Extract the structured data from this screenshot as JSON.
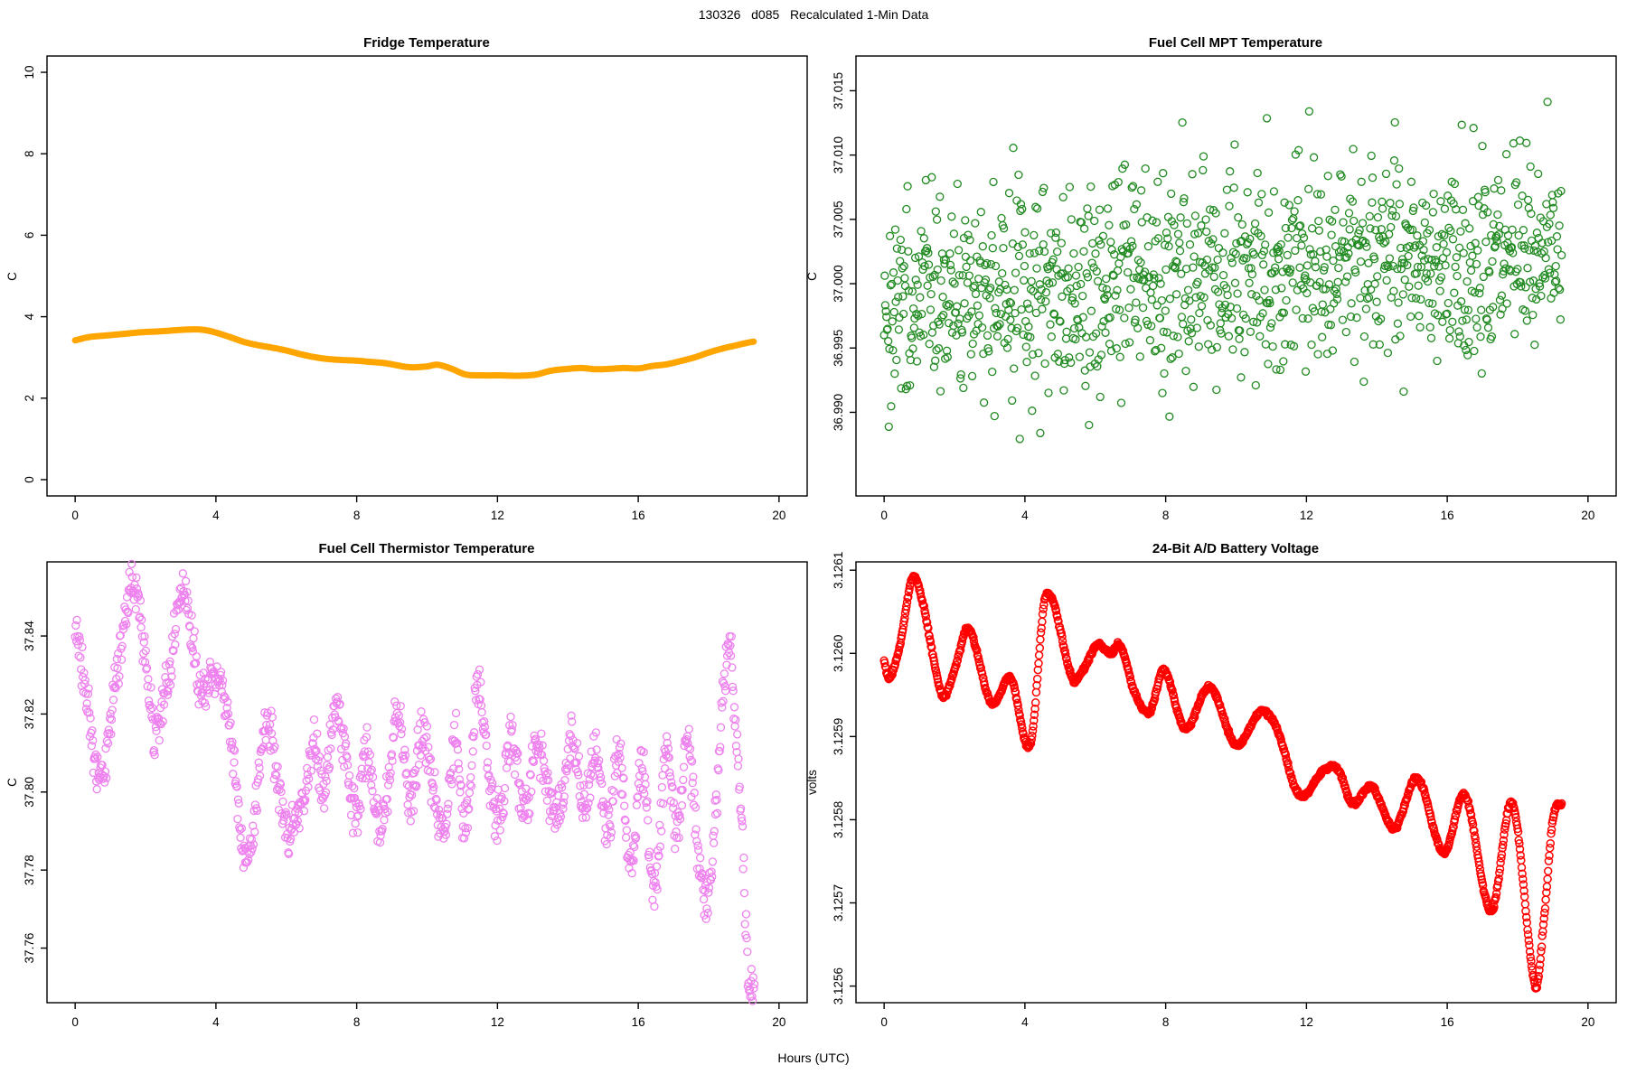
{
  "main_title": "130326   d085   Recalculated 1-Min Data",
  "x_axis": {
    "label": "Hours (UTC)",
    "lim": [
      -0.8,
      20.8
    ],
    "ticks": [
      0,
      4,
      8,
      12,
      16,
      20
    ],
    "tick_labels": [
      "0",
      "4",
      "8",
      "12",
      "16",
      "20"
    ]
  },
  "chart_data": [
    {
      "type": "line",
      "title": "Fridge Temperature",
      "ylabel": "C",
      "color": "#FFA500",
      "line_width": 7,
      "ylim": [
        -0.4,
        10.4
      ],
      "yticks": [
        0,
        2,
        4,
        6,
        8,
        10
      ],
      "ytick_labels": [
        "0",
        "2",
        "4",
        "6",
        "8",
        "10"
      ],
      "x_range_hours": [
        0,
        19.3
      ],
      "line_points": [
        [
          0,
          3.42
        ],
        [
          0.4,
          3.5
        ],
        [
          0.9,
          3.54
        ],
        [
          1.4,
          3.58
        ],
        [
          1.9,
          3.62
        ],
        [
          2.4,
          3.64
        ],
        [
          2.9,
          3.67
        ],
        [
          3.4,
          3.69
        ],
        [
          3.7,
          3.67
        ],
        [
          4.0,
          3.61
        ],
        [
          4.4,
          3.5
        ],
        [
          4.8,
          3.38
        ],
        [
          5.2,
          3.3
        ],
        [
          5.6,
          3.24
        ],
        [
          6.0,
          3.17
        ],
        [
          6.5,
          3.06
        ],
        [
          7.0,
          2.98
        ],
        [
          7.5,
          2.94
        ],
        [
          8.0,
          2.92
        ],
        [
          8.4,
          2.89
        ],
        [
          8.8,
          2.86
        ],
        [
          9.5,
          2.76
        ],
        [
          10.0,
          2.78
        ],
        [
          10.3,
          2.82
        ],
        [
          10.7,
          2.72
        ],
        [
          11.1,
          2.58
        ],
        [
          11.6,
          2.56
        ],
        [
          12.1,
          2.56
        ],
        [
          12.6,
          2.55
        ],
        [
          13.1,
          2.58
        ],
        [
          13.5,
          2.67
        ],
        [
          14.0,
          2.72
        ],
        [
          14.4,
          2.74
        ],
        [
          14.8,
          2.71
        ],
        [
          15.2,
          2.72
        ],
        [
          15.6,
          2.74
        ],
        [
          16.0,
          2.73
        ],
        [
          16.4,
          2.79
        ],
        [
          16.8,
          2.83
        ],
        [
          17.2,
          2.91
        ],
        [
          17.6,
          3.0
        ],
        [
          18.0,
          3.12
        ],
        [
          18.4,
          3.22
        ],
        [
          18.8,
          3.3
        ],
        [
          19.1,
          3.36
        ],
        [
          19.3,
          3.39
        ]
      ]
    },
    {
      "type": "scatter",
      "title": "Fuel Cell MPT Temperature",
      "ylabel": "C",
      "color": "#228B22",
      "marker": {
        "shape": "open-circle",
        "radius": 4,
        "stroke_width": 1.3
      },
      "ylim": [
        36.9835,
        37.0177
      ],
      "yticks": [
        36.99,
        36.995,
        37.0,
        37.005,
        37.01,
        37.015
      ],
      "ytick_labels": [
        "36.990",
        "36.995",
        "37.000",
        "37.005",
        "37.010",
        "37.015"
      ],
      "generator": {
        "kind": "gauss_trend",
        "n": 1155,
        "x_max": 19.25,
        "seed": 1303266,
        "mean_start": 36.9985,
        "mean_slope": 0.00024,
        "sd": 0.004,
        "clip_z": 3.0
      }
    },
    {
      "type": "scatter",
      "title": "Fuel Cell Thermistor Temperature",
      "ylabel": "C",
      "color": "#EE82EE",
      "marker": {
        "shape": "open-circle",
        "radius": 4,
        "stroke_width": 1.3
      },
      "ylim": [
        37.746,
        37.859
      ],
      "yticks": [
        37.76,
        37.78,
        37.8,
        37.82,
        37.84
      ],
      "ytick_labels": [
        "37.76",
        "37.78",
        "37.80",
        "37.82",
        "37.84"
      ],
      "generator": {
        "kind": "anchors_noise",
        "n": 1155,
        "x_max": 19.3,
        "seed": 85,
        "sd": 0.0033,
        "clip_z": 2.0,
        "anchors": [
          [
            0,
            37.843
          ],
          [
            0.35,
            37.822
          ],
          [
            0.75,
            37.803
          ],
          [
            1.1,
            37.825
          ],
          [
            1.55,
            37.851
          ],
          [
            1.8,
            37.848
          ],
          [
            2.25,
            37.816
          ],
          [
            2.6,
            37.828
          ],
          [
            3.05,
            37.852
          ],
          [
            3.3,
            37.84
          ],
          [
            3.55,
            37.828
          ],
          [
            3.9,
            37.828
          ],
          [
            4.2,
            37.826
          ],
          [
            4.5,
            37.81
          ],
          [
            4.8,
            37.783
          ],
          [
            5.1,
            37.795
          ],
          [
            5.45,
            37.818
          ],
          [
            5.8,
            37.8
          ],
          [
            6.15,
            37.79
          ],
          [
            6.5,
            37.8
          ],
          [
            6.8,
            37.812
          ],
          [
            7.05,
            37.8
          ],
          [
            7.4,
            37.822
          ],
          [
            7.75,
            37.805
          ],
          [
            8.0,
            37.793
          ],
          [
            8.3,
            37.81
          ],
          [
            8.6,
            37.792
          ],
          [
            8.9,
            37.8
          ],
          [
            9.15,
            37.82
          ],
          [
            9.5,
            37.797
          ],
          [
            9.85,
            37.815
          ],
          [
            10.2,
            37.8
          ],
          [
            10.5,
            37.79
          ],
          [
            10.8,
            37.814
          ],
          [
            11.1,
            37.79
          ],
          [
            11.45,
            37.827
          ],
          [
            11.8,
            37.8
          ],
          [
            12.1,
            37.795
          ],
          [
            12.4,
            37.815
          ],
          [
            12.75,
            37.793
          ],
          [
            13.1,
            37.812
          ],
          [
            13.45,
            37.8
          ],
          [
            13.8,
            37.795
          ],
          [
            14.1,
            37.813
          ],
          [
            14.45,
            37.797
          ],
          [
            14.8,
            37.81
          ],
          [
            15.1,
            37.79
          ],
          [
            15.45,
            37.808
          ],
          [
            15.8,
            37.782
          ],
          [
            16.1,
            37.807
          ],
          [
            16.45,
            37.775
          ],
          [
            16.8,
            37.81
          ],
          [
            17.1,
            37.79
          ],
          [
            17.4,
            37.812
          ],
          [
            17.7,
            37.785
          ],
          [
            17.95,
            37.77
          ],
          [
            18.2,
            37.795
          ],
          [
            18.45,
            37.828
          ],
          [
            18.6,
            37.837
          ],
          [
            18.75,
            37.82
          ],
          [
            18.9,
            37.8
          ],
          [
            19.05,
            37.765
          ],
          [
            19.15,
            37.752
          ],
          [
            19.3,
            37.749
          ]
        ]
      }
    },
    {
      "type": "scatter",
      "title": "24-Bit A/D Battery Voltage",
      "ylabel": "volts",
      "color": "#FF0000",
      "marker": {
        "shape": "open-circle",
        "radius": 4,
        "stroke_width": 1.5
      },
      "ylim": [
        3.12558,
        3.12611
      ],
      "yticks": [
        3.1256,
        3.1257,
        3.1258,
        3.1259,
        3.126,
        3.1261
      ],
      "ytick_labels": [
        "3.1256",
        "3.1257",
        "3.1258",
        "3.1259",
        "3.1260",
        "3.1261"
      ],
      "generator": {
        "kind": "anchors_noise",
        "n": 1155,
        "x_max": 19.25,
        "seed": 9,
        "sd": 1.2e-06,
        "clip_z": 2.5,
        "anchors": [
          [
            0,
            3.12599
          ],
          [
            0.15,
            3.12597
          ],
          [
            0.45,
            3.12601
          ],
          [
            0.8,
            3.12609
          ],
          [
            1.1,
            3.12606
          ],
          [
            1.65,
            3.12595
          ],
          [
            2.0,
            3.12598
          ],
          [
            2.4,
            3.12603
          ],
          [
            3.05,
            3.12594
          ],
          [
            3.6,
            3.12597
          ],
          [
            4.15,
            3.12589
          ],
          [
            4.6,
            3.12607
          ],
          [
            5.35,
            3.12597
          ],
          [
            5.65,
            3.12598
          ],
          [
            6.05,
            3.12601
          ],
          [
            6.45,
            3.126
          ],
          [
            6.7,
            3.12601
          ],
          [
            7.15,
            3.12595
          ],
          [
            7.55,
            3.12593
          ],
          [
            7.95,
            3.12598
          ],
          [
            8.55,
            3.12591
          ],
          [
            9.25,
            3.12596
          ],
          [
            10.0,
            3.12589
          ],
          [
            10.7,
            3.12593
          ],
          [
            11.15,
            3.12591
          ],
          [
            11.8,
            3.12583
          ],
          [
            12.5,
            3.12586
          ],
          [
            12.9,
            3.12586
          ],
          [
            13.3,
            3.12582
          ],
          [
            13.85,
            3.12584
          ],
          [
            14.5,
            3.12579
          ],
          [
            15.15,
            3.12585
          ],
          [
            15.9,
            3.12576
          ],
          [
            16.5,
            3.12583
          ],
          [
            17.25,
            3.12569
          ],
          [
            17.85,
            3.12582
          ],
          [
            18.5,
            3.1256
          ],
          [
            18.75,
            3.12568
          ],
          [
            19.0,
            3.1258
          ],
          [
            19.25,
            3.12582
          ]
        ]
      }
    }
  ]
}
